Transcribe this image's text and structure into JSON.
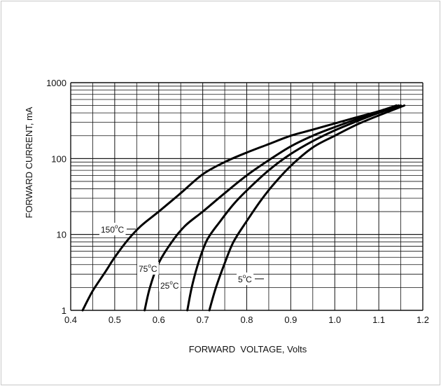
{
  "chart_data": {
    "type": "line",
    "xlabel": "FORWARD  VOLTAGE, Volts",
    "ylabel": "FORWARD CURRENT, mA",
    "xlim": [
      0.4,
      1.2
    ],
    "ylim": [
      1,
      1000
    ],
    "yscale": "log",
    "grid": true,
    "x_ticks": [
      "0.4",
      "0.5",
      "0.6",
      "0.7",
      "0.8",
      "0.9",
      "1.0",
      "1.1",
      "1.2"
    ],
    "y_ticks": [
      "1",
      "10",
      "100",
      "1000"
    ],
    "series": [
      {
        "name": "150°C",
        "label_main": "150",
        "label_deg": "o",
        "label_unit": "C",
        "x": [
          0.427,
          0.45,
          0.48,
          0.5,
          0.53,
          0.56,
          0.6,
          0.65,
          0.7,
          0.75,
          0.8,
          0.85,
          0.9,
          0.95,
          1.0,
          1.05,
          1.1,
          1.14
        ],
        "y": [
          1,
          1.8,
          3.3,
          5.0,
          8.5,
          13,
          20,
          35,
          62,
          90,
          120,
          155,
          200,
          240,
          290,
          350,
          420,
          500
        ]
      },
      {
        "name": "75°C",
        "label_main": "75",
        "label_deg": "o",
        "label_unit": "C",
        "x": [
          0.568,
          0.58,
          0.6,
          0.63,
          0.66,
          0.7,
          0.75,
          0.8,
          0.85,
          0.9,
          0.95,
          1.0,
          1.05,
          1.1,
          1.145
        ],
        "y": [
          1,
          2.0,
          4.2,
          8.0,
          13,
          20,
          35,
          60,
          95,
          145,
          200,
          260,
          330,
          410,
          500
        ]
      },
      {
        "name": "25°C",
        "label_main": "25",
        "label_deg": "o",
        "label_unit": "C",
        "x": [
          0.665,
          0.675,
          0.69,
          0.71,
          0.74,
          0.77,
          0.8,
          0.85,
          0.9,
          0.95,
          1.0,
          1.05,
          1.1,
          1.15
        ],
        "y": [
          1,
          2.0,
          4.2,
          8.5,
          15,
          25,
          38,
          70,
          115,
          170,
          235,
          310,
          400,
          500
        ]
      },
      {
        "name": "5°C",
        "label_main": "5",
        "label_deg": "o",
        "label_unit": "C",
        "x": [
          0.715,
          0.73,
          0.75,
          0.77,
          0.8,
          0.83,
          0.86,
          0.9,
          0.95,
          1.0,
          1.05,
          1.1,
          1.158
        ],
        "y": [
          1,
          2.0,
          4.2,
          8.0,
          15,
          27,
          45,
          80,
          140,
          200,
          280,
          370,
          500
        ]
      }
    ]
  }
}
